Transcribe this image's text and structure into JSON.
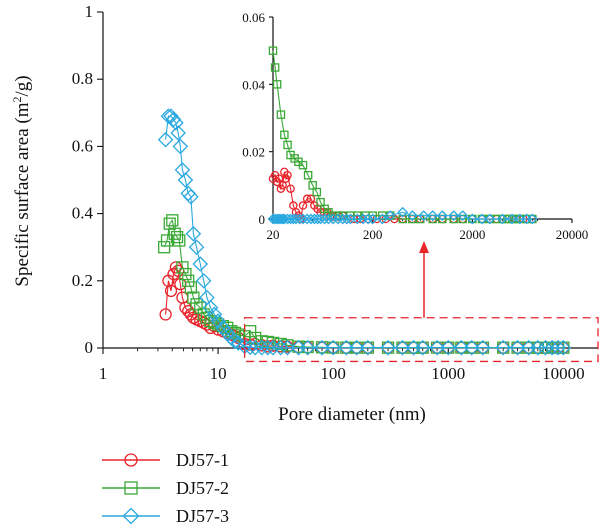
{
  "chart_data": [
    {
      "id": "main",
      "type": "scatter",
      "xscale": "log",
      "xlabel": "Pore diameter (nm)",
      "ylabel_main": "Specific surface area (m",
      "ylabel_sup": "2",
      "ylabel_tail": "/g)",
      "xlim": [
        1,
        20000
      ],
      "ylim": [
        0,
        1
      ],
      "xticks": [
        1,
        10,
        100,
        1000,
        10000
      ],
      "xtick_labels": [
        "1",
        "10",
        "100",
        "1000",
        "10000"
      ],
      "yticks": [
        0,
        0.2,
        0.4,
        0.6,
        0.8,
        1
      ],
      "ytick_labels": [
        "0",
        "0.2",
        "0.4",
        "0.6",
        "0.8",
        "1"
      ],
      "grid": false,
      "legend": "bottom-left, below plot",
      "highlight_box_x": [
        17,
        20000
      ],
      "highlight_box_y": [
        -0.04,
        0.09
      ],
      "series": [
        {
          "name": "DJ57-1",
          "color": "#e8242b",
          "marker": "circle",
          "x": [
            3.5,
            3.7,
            3.9,
            4.1,
            4.3,
            4.5,
            4.7,
            4.9,
            5.2,
            5.5,
            5.8,
            6.1,
            6.5,
            7.0,
            7.5,
            8.0,
            8.6,
            9.3,
            10,
            11,
            12,
            13,
            14,
            15,
            17,
            19,
            21,
            24,
            27,
            30,
            35,
            40,
            50,
            60,
            80,
            100,
            130,
            160,
            200,
            300,
            400,
            500,
            600,
            800,
            1000,
            1300,
            1600,
            2000,
            3000,
            4000,
            5000,
            6000,
            7000,
            8000,
            9000,
            10000
          ],
          "y": [
            0.1,
            0.2,
            0.17,
            0.22,
            0.24,
            0.23,
            0.19,
            0.15,
            0.12,
            0.11,
            0.1,
            0.09,
            0.085,
            0.08,
            0.075,
            0.07,
            0.06,
            0.065,
            0.055,
            0.05,
            0.045,
            0.04,
            0.035,
            0.03,
            0.012,
            0.01,
            0.012,
            0.008,
            0.005,
            0.007,
            0.005,
            0.004,
            0.003,
            0.002,
            0.001,
            0.001,
            0.001,
            0.001,
            0.001,
            0.001,
            0.001,
            0.001,
            0.001,
            0.001,
            0.001,
            0.001,
            0.001,
            0.001,
            0.001,
            0.001,
            0.001,
            0.001,
            0.001,
            0.001,
            0.001,
            0.001
          ]
        },
        {
          "name": "DJ57-2",
          "color": "#3aa935",
          "marker": "square",
          "x": [
            3.4,
            3.6,
            3.8,
            4.0,
            4.2,
            4.4,
            4.6,
            4.9,
            5.2,
            5.5,
            5.8,
            6.1,
            6.5,
            7.0,
            7.5,
            8.0,
            8.6,
            9.3,
            10,
            11,
            12,
            13,
            14,
            15,
            17,
            19,
            21,
            24,
            27,
            30,
            35,
            40,
            50,
            60,
            80,
            100,
            130,
            160,
            200,
            300,
            400,
            500,
            600,
            800,
            1000,
            1300,
            1600,
            2000,
            3000,
            4000,
            5000,
            6000,
            7000,
            8000,
            9000,
            10000
          ],
          "y": [
            0.3,
            0.32,
            0.37,
            0.38,
            0.34,
            0.33,
            0.32,
            0.24,
            0.22,
            0.2,
            0.18,
            0.15,
            0.13,
            0.12,
            0.1,
            0.09,
            0.08,
            0.075,
            0.07,
            0.065,
            0.06,
            0.05,
            0.045,
            0.04,
            0.035,
            0.05,
            0.03,
            0.02,
            0.018,
            0.015,
            0.012,
            0.008,
            0.004,
            0.003,
            0.002,
            0.001,
            0.001,
            0.001,
            0.001,
            0.001,
            0.001,
            0.001,
            0.001,
            0.001,
            0.001,
            0.001,
            0.001,
            0.001,
            0.001,
            0.001,
            0.001,
            0.001,
            0.001,
            0.001,
            0.001,
            0.001
          ]
        },
        {
          "name": "DJ57-3",
          "color": "#29a8e0",
          "marker": "diamond",
          "x": [
            3.5,
            3.7,
            3.9,
            4.1,
            4.3,
            4.5,
            4.7,
            4.9,
            5.2,
            5.5,
            5.8,
            6.1,
            6.5,
            7.0,
            7.5,
            8.0,
            8.6,
            9.3,
            10,
            11,
            12,
            13,
            14,
            15,
            17,
            19,
            21,
            24,
            27,
            30,
            35,
            40,
            50,
            60,
            80,
            100,
            130,
            160,
            200,
            300,
            400,
            500,
            600,
            800,
            1000,
            1300,
            1600,
            2000,
            3000,
            4000,
            5000,
            6000,
            7000,
            8000,
            9000,
            10000
          ],
          "y": [
            0.62,
            0.69,
            0.69,
            0.68,
            0.67,
            0.64,
            0.6,
            0.53,
            0.5,
            0.46,
            0.45,
            0.34,
            0.3,
            0.25,
            0.2,
            0.15,
            0.12,
            0.1,
            0.08,
            0.06,
            0.045,
            0.03,
            0.02,
            0.015,
            0.005,
            0.002,
            0.001,
            0.001,
            0.001,
            0.001,
            0.001,
            0.001,
            0.001,
            0.001,
            0.001,
            0.001,
            0.001,
            0.001,
            0.001,
            0.001,
            0.001,
            0.001,
            0.001,
            0.001,
            0.001,
            0.001,
            0.001,
            0.001,
            0.001,
            0.001,
            0.001,
            0.001,
            0.001,
            0.001,
            0.001,
            0.001
          ]
        }
      ]
    },
    {
      "id": "inset",
      "type": "line",
      "xscale": "log",
      "xlim": [
        20,
        20000
      ],
      "ylim": [
        0,
        0.06
      ],
      "xticks": [
        20,
        200,
        2000,
        20000
      ],
      "xtick_labels": [
        "20",
        "200",
        "2000",
        "20000"
      ],
      "yticks": [
        0,
        0.02,
        0.04,
        0.06
      ],
      "ytick_labels": [
        "0",
        "0.02",
        "0.04",
        "0.06"
      ],
      "grid": false,
      "series": [
        {
          "name": "DJ57-1",
          "color": "#e8242b",
          "marker": "circle",
          "x": [
            20,
            21,
            22,
            23,
            24,
            25,
            26,
            27,
            28,
            30,
            32,
            34,
            36,
            38,
            40,
            44,
            48,
            52,
            56,
            60,
            65,
            70,
            75,
            80,
            90,
            100,
            110,
            130,
            150,
            180,
            220,
            270,
            330,
            400,
            500,
            600,
            800,
            1000,
            1300,
            1600,
            2000,
            2500,
            3000,
            3500,
            4000,
            4500,
            5000,
            5500,
            6000,
            6500,
            7000,
            8000
          ],
          "y": [
            0.012,
            0.013,
            0.011,
            0.012,
            0.009,
            0.01,
            0.014,
            0.012,
            0.013,
            0.009,
            0.004,
            0.002,
            0.001,
            0.0,
            0.004,
            0.006,
            0.006,
            0.004,
            0.003,
            0.002,
            0.002,
            0.002,
            0.001,
            0.001,
            0.001,
            0.001,
            0.0,
            0.0,
            0.0,
            0.0,
            0.0,
            0.0,
            0.0,
            0.0,
            0.0,
            0.0,
            0.0,
            0.0,
            0.0,
            0.0,
            0.0,
            0.0,
            0.0,
            0.0,
            0.0,
            0.0,
            0.0,
            0.0,
            0.0,
            0.0,
            0.0,
            0.0
          ]
        },
        {
          "name": "DJ57-2",
          "color": "#3aa935",
          "marker": "square",
          "x": [
            20,
            21,
            22,
            24,
            26,
            28,
            30,
            33,
            36,
            40,
            45,
            50,
            55,
            60,
            66,
            72,
            80,
            90,
            100,
            120,
            140,
            170,
            200,
            250,
            300,
            400,
            500,
            600,
            800,
            1000,
            1300,
            1600,
            2000,
            2500,
            3000,
            3500,
            4000,
            4500,
            5000,
            5500,
            6000,
            7000,
            8000
          ],
          "y": [
            0.05,
            0.045,
            0.04,
            0.031,
            0.025,
            0.022,
            0.019,
            0.018,
            0.017,
            0.016,
            0.013,
            0.01,
            0.008,
            0.005,
            0.003,
            0.002,
            0.001,
            0.001,
            0.001,
            0.001,
            0.001,
            0.001,
            0.001,
            0.001,
            0.001,
            0.0,
            0.0,
            0.0,
            0.0,
            0.0,
            0.0,
            0.0,
            0.0,
            0.0,
            0.0,
            0.0,
            0.0,
            0.0,
            0.0,
            0.0,
            0.0,
            0.0,
            0.0
          ]
        },
        {
          "name": "DJ57-3",
          "color": "#29a8e0",
          "marker": "diamond",
          "x": [
            20,
            21,
            22,
            23,
            24,
            25,
            26,
            28,
            30,
            32,
            34,
            37,
            40,
            44,
            48,
            52,
            56,
            60,
            66,
            72,
            80,
            90,
            100,
            110,
            120,
            140,
            160,
            180,
            200,
            250,
            300,
            400,
            500,
            650,
            800,
            1000,
            1300,
            1600,
            2000,
            2500,
            3000,
            4000,
            5000,
            6000,
            7000,
            8000
          ],
          "y": [
            0.0,
            0.0,
            0.0,
            0.0,
            0.0,
            0.0,
            0.0,
            0.0,
            0.0,
            0.0,
            0.0,
            0.0,
            0.0,
            0.0,
            0.0,
            0.0,
            0.0,
            0.0,
            0.0,
            0.0,
            0.0,
            0.0,
            0.0,
            0.0,
            0.0,
            0.0,
            0.0,
            0.0,
            0.0,
            0.0,
            0.001,
            0.002,
            0.001,
            0.001,
            0.001,
            0.001,
            0.001,
            0.001,
            0.0,
            0.0,
            0.0,
            0.0,
            0.0,
            0.0,
            0.0,
            0.0
          ]
        }
      ]
    }
  ]
}
